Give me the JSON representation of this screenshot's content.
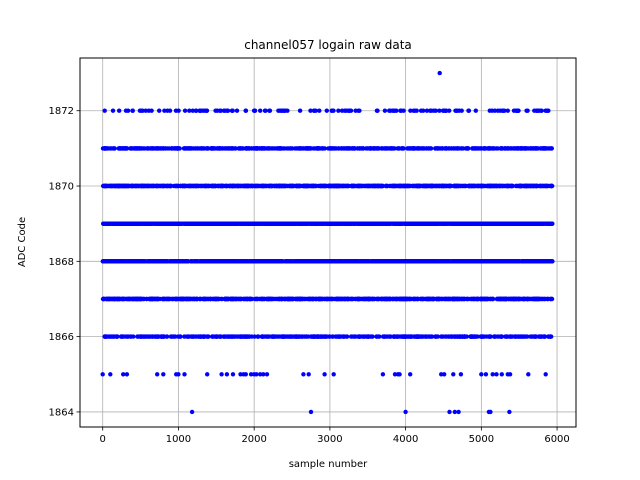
{
  "chart_data": {
    "type": "scatter",
    "title": "channel057 logain raw data",
    "xlabel": "sample number",
    "ylabel": "ADC Code",
    "xlim": [
      -300,
      6250
    ],
    "ylim": [
      1863.6,
      1873.4
    ],
    "xticks": [
      0,
      1000,
      2000,
      3000,
      4000,
      5000,
      6000
    ],
    "yticks": [
      1864,
      1866,
      1868,
      1870,
      1872
    ],
    "grid": true,
    "marker_color": "#0000ff",
    "series": [
      {
        "color": "#0000ff",
        "level_counts": [
          {
            "y": 1864,
            "approx_count": 9
          },
          {
            "y": 1865,
            "approx_count": 50
          },
          {
            "y": 1866,
            "approx_count": 500
          },
          {
            "y": 1867,
            "approx_count": 900
          },
          {
            "y": 1868,
            "approx_count": 1400
          },
          {
            "y": 1869,
            "approx_count": 1400
          },
          {
            "y": 1870,
            "approx_count": 950
          },
          {
            "y": 1871,
            "approx_count": 600
          },
          {
            "y": 1872,
            "approx_count": 150
          },
          {
            "y": 1873,
            "approx_count": 1
          }
        ],
        "points_sparse": {
          "1864": [
            1180,
            2750,
            4000,
            4580,
            4650,
            4700,
            5100,
            5120,
            5370
          ],
          "1865": [
            0,
            100,
            270,
            320,
            720,
            800,
            970,
            1000,
            1080,
            1380,
            1570,
            1640,
            1720,
            1820,
            1860,
            1890,
            1960,
            2000,
            2030,
            2080,
            2120,
            2170,
            2650,
            2720,
            2930,
            3050,
            3700,
            3860,
            3900,
            3920,
            4060,
            4470,
            4510,
            4630,
            4730,
            5000,
            5060,
            5150,
            5200,
            5270,
            5350,
            5380,
            5620,
            5850
          ],
          "1873": [
            4450
          ]
        }
      }
    ]
  }
}
